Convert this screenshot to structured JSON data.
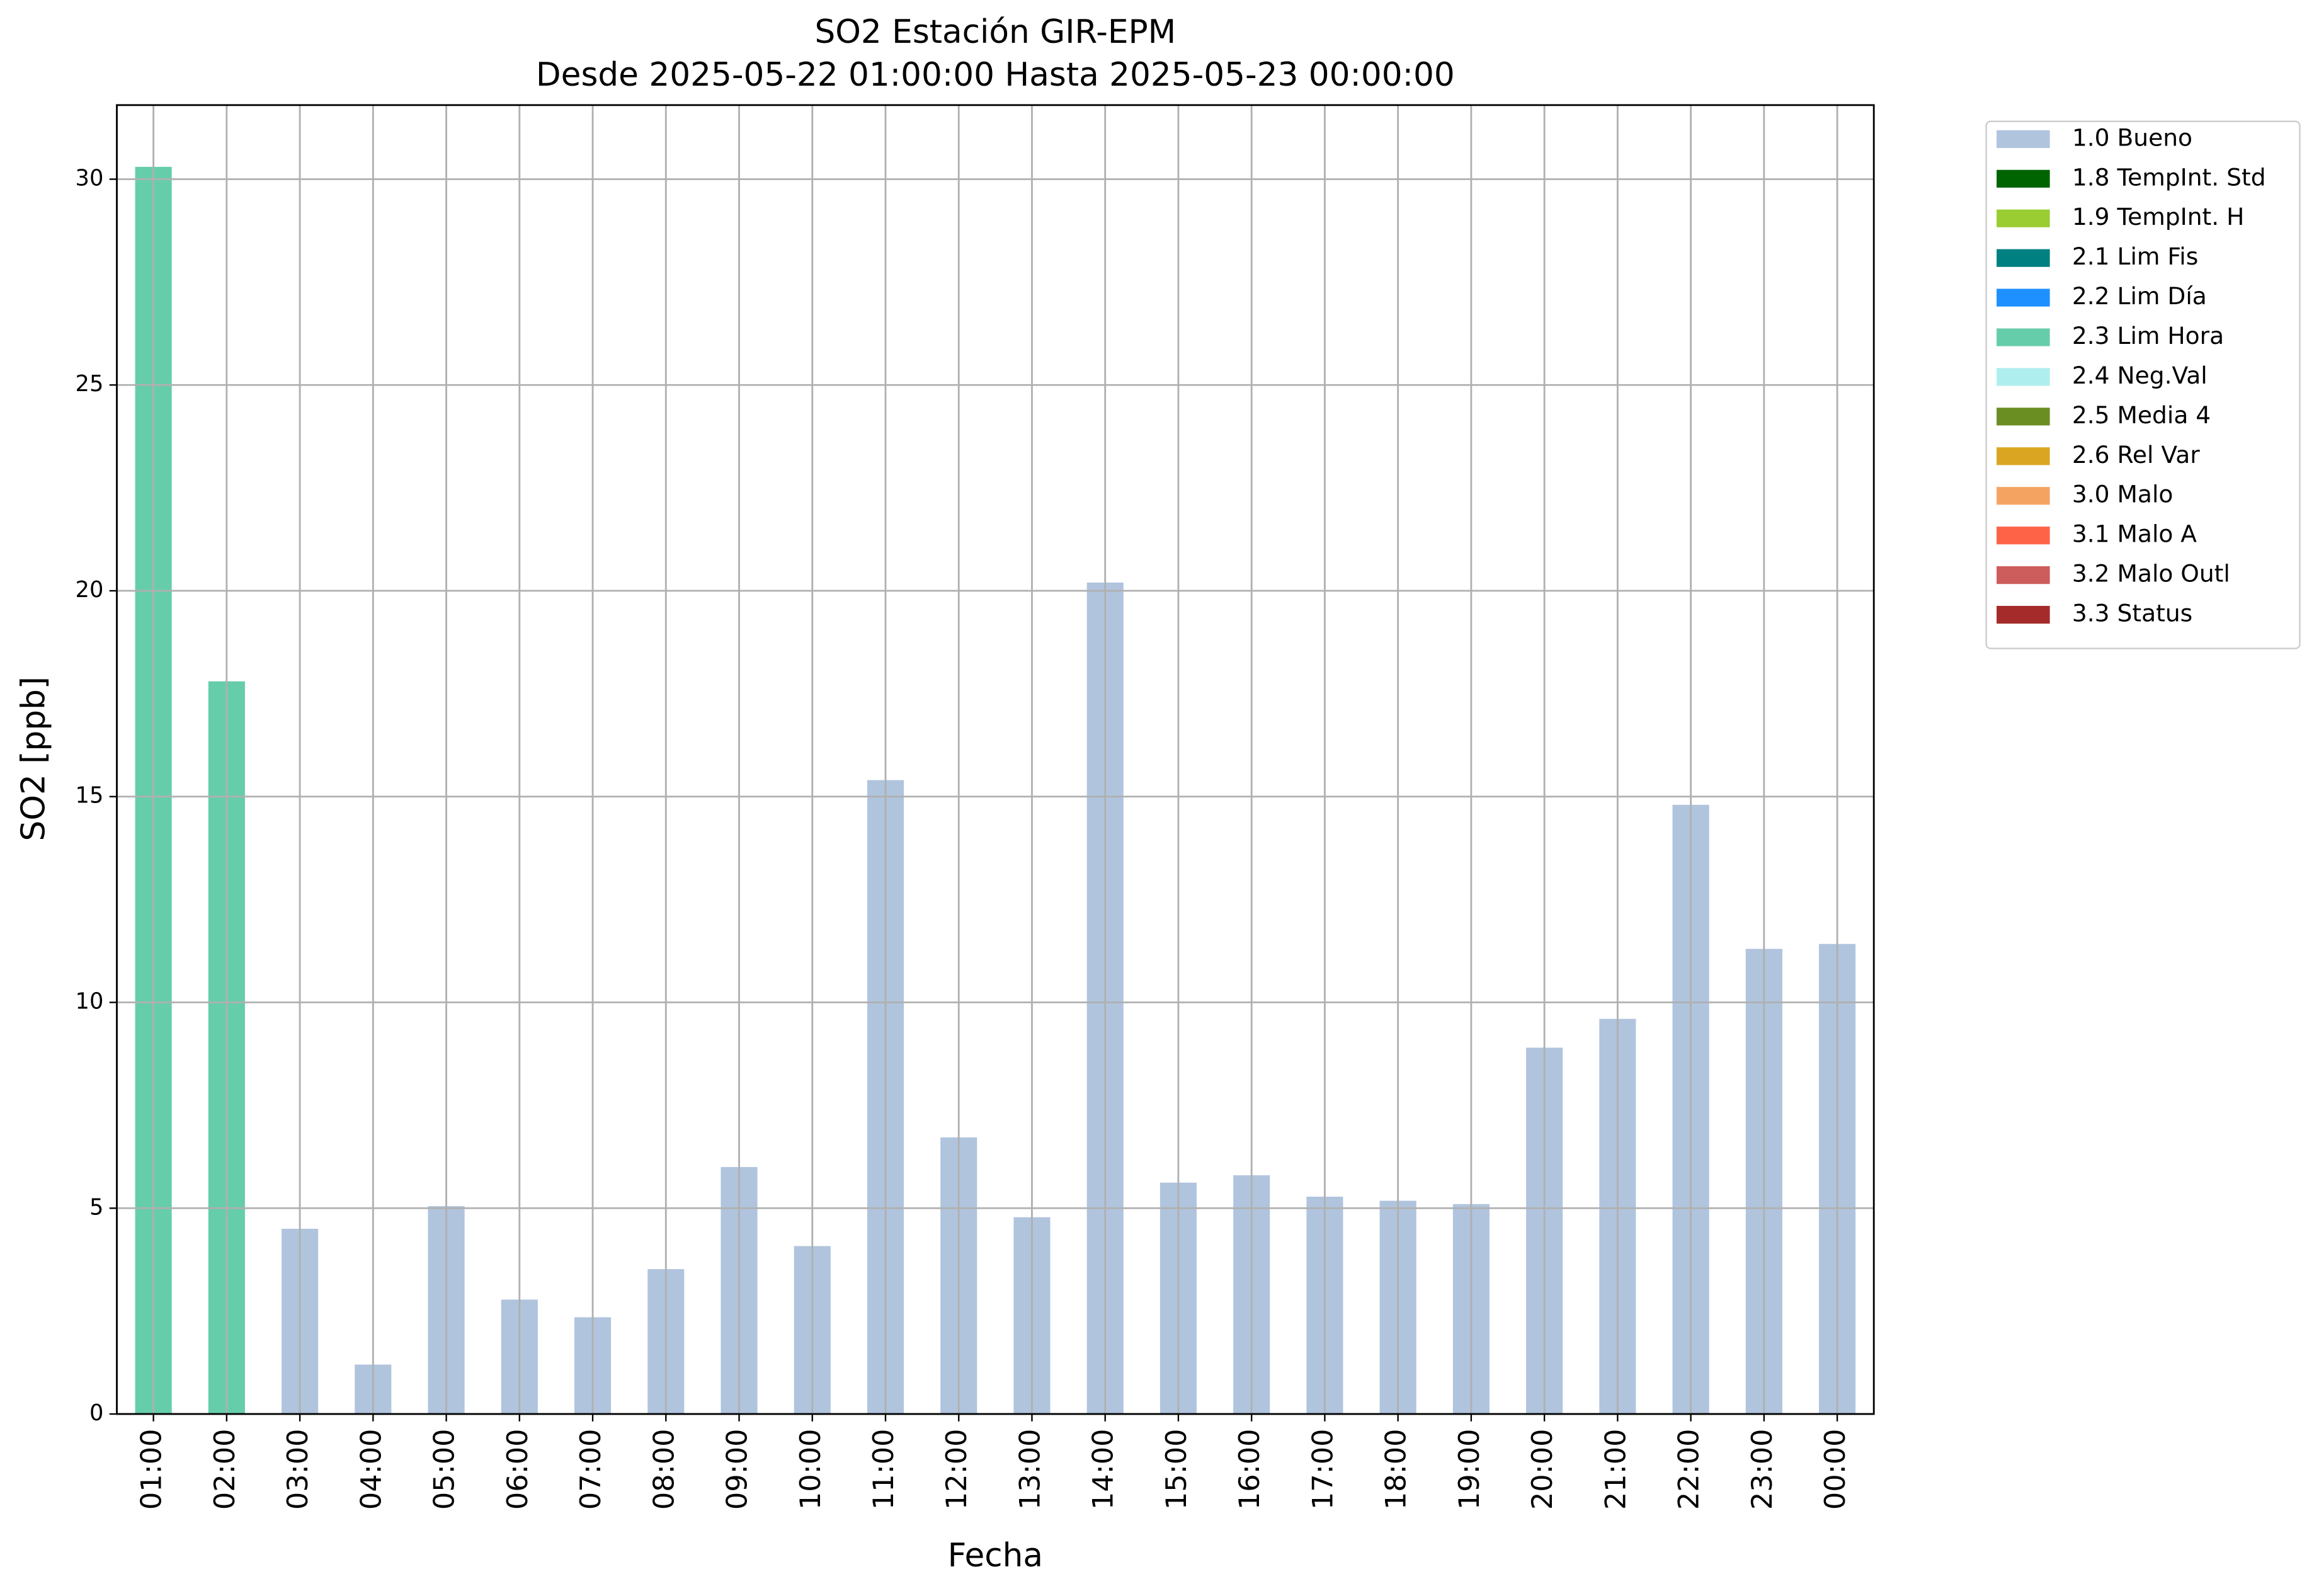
{
  "chart_data": {
    "type": "bar",
    "stacked": true,
    "title": "SO2 Estación GIR-EPM",
    "subtitle": "Desde 2025-05-22 01:00:00 Hasta 2025-05-23 00:00:00",
    "x_label": "Fecha",
    "y_label": "SO2 [ppb]",
    "categories": [
      "01:00",
      "02:00",
      "03:00",
      "04:00",
      "05:00",
      "06:00",
      "07:00",
      "08:00",
      "09:00",
      "10:00",
      "11:00",
      "12:00",
      "13:00",
      "14:00",
      "15:00",
      "16:00",
      "17:00",
      "18:00",
      "19:00",
      "20:00",
      "21:00",
      "22:00",
      "23:00",
      "00:00"
    ],
    "series": [
      {
        "name": "1.0 Bueno",
        "color": "#b0c4de",
        "values": [
          null,
          null,
          4.5,
          1.2,
          5.05,
          2.78,
          2.35,
          3.52,
          6.0,
          4.08,
          15.4,
          6.72,
          4.78,
          20.2,
          5.62,
          5.8,
          5.28,
          5.18,
          5.1,
          8.9,
          9.6,
          14.8,
          11.3,
          11.42
        ]
      },
      {
        "name": "1.8 TempInt. Std",
        "color": "#006400",
        "values": [
          null,
          null,
          null,
          null,
          null,
          null,
          null,
          null,
          null,
          null,
          null,
          null,
          null,
          null,
          null,
          null,
          null,
          null,
          null,
          null,
          null,
          null,
          null,
          null
        ]
      },
      {
        "name": "1.9 TempInt. H",
        "color": "#9acd32",
        "values": [
          null,
          null,
          null,
          null,
          null,
          null,
          null,
          null,
          null,
          null,
          null,
          null,
          null,
          null,
          null,
          null,
          null,
          null,
          null,
          null,
          null,
          null,
          null,
          null
        ]
      },
      {
        "name": "2.1 Lim Fis",
        "color": "#008080",
        "values": [
          null,
          null,
          null,
          null,
          null,
          null,
          null,
          null,
          null,
          null,
          null,
          null,
          null,
          null,
          null,
          null,
          null,
          null,
          null,
          null,
          null,
          null,
          null,
          null
        ]
      },
      {
        "name": "2.2 Lim Día",
        "color": "#1e90ff",
        "values": [
          null,
          null,
          null,
          null,
          null,
          null,
          null,
          null,
          null,
          null,
          null,
          null,
          null,
          null,
          null,
          null,
          null,
          null,
          null,
          null,
          null,
          null,
          null,
          null
        ]
      },
      {
        "name": "2.3 Lim Hora",
        "color": "#66cdaa",
        "values": [
          30.3,
          17.8,
          null,
          null,
          null,
          null,
          null,
          null,
          null,
          null,
          null,
          null,
          null,
          null,
          null,
          null,
          null,
          null,
          null,
          null,
          null,
          null,
          null,
          null
        ]
      },
      {
        "name": "2.4 Neg.Val",
        "color": "#afeeee",
        "values": [
          null,
          null,
          null,
          null,
          null,
          null,
          null,
          null,
          null,
          null,
          null,
          null,
          null,
          null,
          null,
          null,
          null,
          null,
          null,
          null,
          null,
          null,
          null,
          null
        ]
      },
      {
        "name": "2.5 Media 4",
        "color": "#6b8e23",
        "values": [
          null,
          null,
          null,
          null,
          null,
          null,
          null,
          null,
          null,
          null,
          null,
          null,
          null,
          null,
          null,
          null,
          null,
          null,
          null,
          null,
          null,
          null,
          null,
          null
        ]
      },
      {
        "name": "2.6 Rel Var",
        "color": "#daa520",
        "values": [
          null,
          null,
          null,
          null,
          null,
          null,
          null,
          null,
          null,
          null,
          null,
          null,
          null,
          null,
          null,
          null,
          null,
          null,
          null,
          null,
          null,
          null,
          null,
          null
        ]
      },
      {
        "name": "3.0 Malo",
        "color": "#f4a460",
        "values": [
          null,
          null,
          null,
          null,
          null,
          null,
          null,
          null,
          null,
          null,
          null,
          null,
          null,
          null,
          null,
          null,
          null,
          null,
          null,
          null,
          null,
          null,
          null,
          null
        ]
      },
      {
        "name": "3.1 Malo A",
        "color": "#ff6347",
        "values": [
          null,
          null,
          null,
          null,
          null,
          null,
          null,
          null,
          null,
          null,
          null,
          null,
          null,
          null,
          null,
          null,
          null,
          null,
          null,
          null,
          null,
          null,
          null,
          null
        ]
      },
      {
        "name": "3.2 Malo Outl",
        "color": "#cd5c5c",
        "values": [
          null,
          null,
          null,
          null,
          null,
          null,
          null,
          null,
          null,
          null,
          null,
          null,
          null,
          null,
          null,
          null,
          null,
          null,
          null,
          null,
          null,
          null,
          null,
          null
        ]
      },
      {
        "name": "3.3 Status",
        "color": "#a52a2a",
        "values": [
          null,
          null,
          null,
          null,
          null,
          null,
          null,
          null,
          null,
          null,
          null,
          null,
          null,
          null,
          null,
          null,
          null,
          null,
          null,
          null,
          null,
          null,
          null,
          null
        ]
      }
    ],
    "ylim": [
      0,
      31.8
    ],
    "yticks": [
      0,
      5,
      10,
      15,
      20,
      25,
      30
    ],
    "grid": true,
    "legend": "outside-right"
  }
}
